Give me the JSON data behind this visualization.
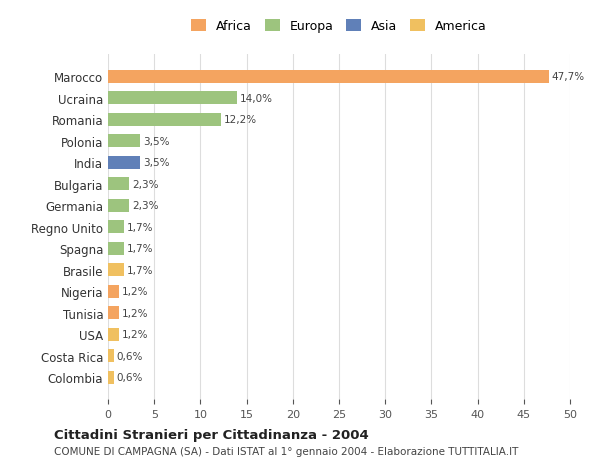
{
  "countries": [
    "Marocco",
    "Ucraina",
    "Romania",
    "Polonia",
    "India",
    "Bulgaria",
    "Germania",
    "Regno Unito",
    "Spagna",
    "Brasile",
    "Nigeria",
    "Tunisia",
    "USA",
    "Costa Rica",
    "Colombia"
  ],
  "values": [
    47.7,
    14.0,
    12.2,
    3.5,
    3.5,
    2.3,
    2.3,
    1.7,
    1.7,
    1.7,
    1.2,
    1.2,
    1.2,
    0.6,
    0.6
  ],
  "labels": [
    "47,7%",
    "14,0%",
    "12,2%",
    "3,5%",
    "3,5%",
    "2,3%",
    "2,3%",
    "1,7%",
    "1,7%",
    "1,7%",
    "1,2%",
    "1,2%",
    "1,2%",
    "0,6%",
    "0,6%"
  ],
  "colors": [
    "#F4A460",
    "#9DC47E",
    "#9DC47E",
    "#9DC47E",
    "#6080B8",
    "#9DC47E",
    "#9DC47E",
    "#9DC47E",
    "#9DC47E",
    "#F0C060",
    "#F4A460",
    "#F4A460",
    "#F0C060",
    "#F0C060",
    "#F0C060"
  ],
  "legend_labels": [
    "Africa",
    "Europa",
    "Asia",
    "America"
  ],
  "legend_colors": [
    "#F4A460",
    "#9DC47E",
    "#6080B8",
    "#F0C060"
  ],
  "title": "Cittadini Stranieri per Cittadinanza - 2004",
  "subtitle": "COMUNE DI CAMPAGNA (SA) - Dati ISTAT al 1° gennaio 2004 - Elaborazione TUTTITALIA.IT",
  "xlim": [
    0,
    50
  ],
  "xticks": [
    0,
    5,
    10,
    15,
    20,
    25,
    30,
    35,
    40,
    45,
    50
  ],
  "background_color": "#ffffff",
  "grid_color": "#dddddd"
}
